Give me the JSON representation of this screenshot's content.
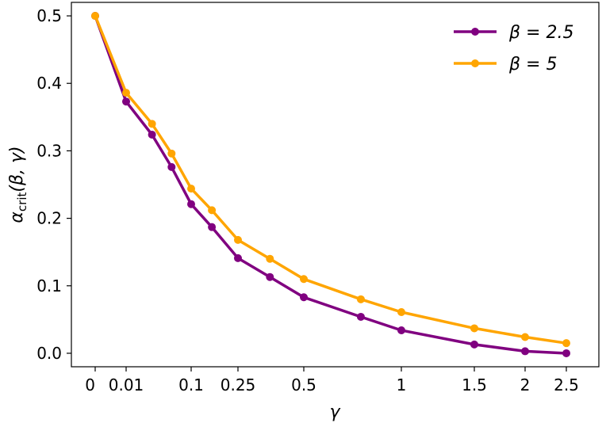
{
  "chart_data": {
    "type": "line",
    "xlabel": "γ",
    "ylabel": {
      "main": "α",
      "sub": "crit",
      "args": "(β, γ)"
    },
    "x_tick_labels": [
      "0",
      "0.01",
      "0.1",
      "0.25",
      "0.5",
      "1",
      "1.5",
      "2",
      "2.5"
    ],
    "x_tick_values": [
      0,
      0.01,
      0.1,
      0.25,
      0.5,
      1,
      1.5,
      2,
      2.5
    ],
    "x_scale": "symmetric-log",
    "y_tick_labels": [
      "0.0",
      "0.1",
      "0.2",
      "0.3",
      "0.4",
      "0.5"
    ],
    "ylim": [
      -0.02,
      0.52
    ],
    "legend_position": "top-right",
    "grid": false,
    "x": [
      0,
      0.01,
      0.025,
      0.05,
      0.1,
      0.15,
      0.25,
      0.35,
      0.5,
      0.75,
      1,
      1.5,
      2,
      2.5
    ],
    "series": [
      {
        "name": "β = 2.5",
        "color": "#800080",
        "values": [
          0.5,
          0.373,
          0.324,
          0.276,
          0.221,
          0.187,
          0.141,
          0.113,
          0.083,
          0.054,
          0.034,
          0.013,
          0.003,
          0.0
        ]
      },
      {
        "name": "β = 5",
        "color": "#FFA500",
        "values": [
          0.5,
          0.386,
          0.34,
          0.296,
          0.244,
          0.212,
          0.168,
          0.14,
          0.11,
          0.08,
          0.061,
          0.037,
          0.024,
          0.015
        ]
      }
    ]
  }
}
